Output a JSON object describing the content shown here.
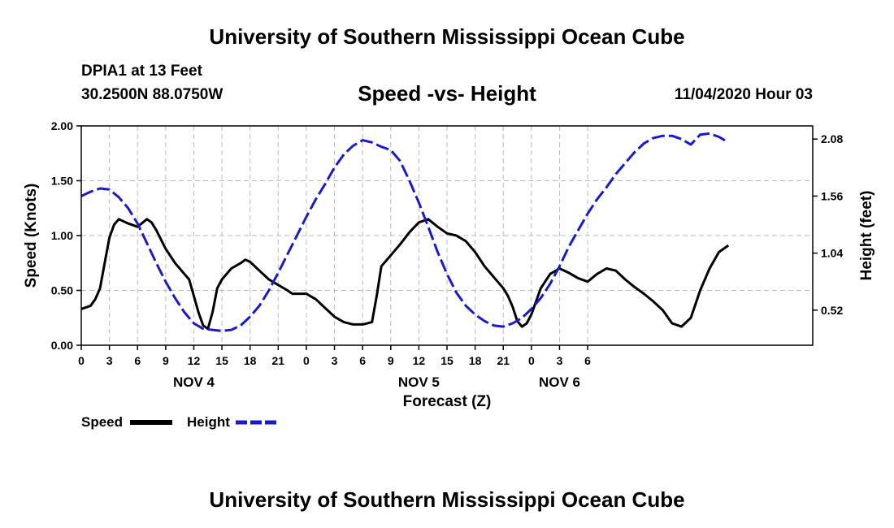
{
  "header": {
    "title": "University of Southern Mississippi Ocean Cube",
    "station": "DPIA1 at 13 Feet",
    "coordinates": "30.2500N 88.0750W",
    "datetime": "11/04/2020 Hour 03"
  },
  "footer": {
    "title": "University of Southern Mississippi Ocean Cube"
  },
  "colors": {
    "speed": "#000000",
    "height": "#1a1acc",
    "grid": "#bbbbbb"
  },
  "chart_data": {
    "type": "line",
    "title": "Speed -vs- Height",
    "xlabel": "Forecast (Z)",
    "ylabel": "Speed (Knots)",
    "y2label": "Height (feet)",
    "x_range": [
      0,
      78
    ],
    "ylim": [
      0,
      2
    ],
    "y2lim": [
      0.2,
      2.2
    ],
    "x_ticks": [
      {
        "x": 0,
        "label": "0"
      },
      {
        "x": 3,
        "label": "3"
      },
      {
        "x": 6,
        "label": "6"
      },
      {
        "x": 9,
        "label": "9"
      },
      {
        "x": 12,
        "label": "12"
      },
      {
        "x": 15,
        "label": "15"
      },
      {
        "x": 18,
        "label": "18"
      },
      {
        "x": 21,
        "label": "21"
      },
      {
        "x": 24,
        "label": "0"
      },
      {
        "x": 27,
        "label": "3"
      },
      {
        "x": 30,
        "label": "6"
      },
      {
        "x": 33,
        "label": "9"
      },
      {
        "x": 36,
        "label": "12"
      },
      {
        "x": 39,
        "label": "15"
      },
      {
        "x": 42,
        "label": "18"
      },
      {
        "x": 45,
        "label": "21"
      },
      {
        "x": 48,
        "label": "0"
      },
      {
        "x": 51,
        "label": "3"
      },
      {
        "x": 54,
        "label": "6"
      }
    ],
    "day_labels": [
      {
        "x": 12,
        "label": "NOV 4"
      },
      {
        "x": 36,
        "label": "NOV 5"
      },
      {
        "x": 51,
        "label": "NOV 6"
      }
    ],
    "y_ticks": [
      {
        "v": 0.0,
        "label": "0.00"
      },
      {
        "v": 0.5,
        "label": "0.50"
      },
      {
        "v": 1.0,
        "label": "1.00"
      },
      {
        "v": 1.5,
        "label": "1.50"
      },
      {
        "v": 2.0,
        "label": "2.00"
      }
    ],
    "y2_ticks": [
      {
        "v": 0.52,
        "label": "0.52"
      },
      {
        "v": 1.04,
        "label": "1.04"
      },
      {
        "v": 1.56,
        "label": "1.56"
      },
      {
        "v": 2.08,
        "label": "2.08"
      }
    ],
    "series": [
      {
        "name": "Speed",
        "axis": "left",
        "style": "solid",
        "points": [
          [
            0,
            0.33
          ],
          [
            1,
            0.36
          ],
          [
            1.5,
            0.42
          ],
          [
            2,
            0.52
          ],
          [
            2.5,
            0.75
          ],
          [
            3,
            0.98
          ],
          [
            3.5,
            1.1
          ],
          [
            4,
            1.15
          ],
          [
            5,
            1.11
          ],
          [
            6,
            1.08
          ],
          [
            7,
            1.15
          ],
          [
            7.5,
            1.12
          ],
          [
            8,
            1.05
          ],
          [
            9,
            0.88
          ],
          [
            10,
            0.75
          ],
          [
            11,
            0.65
          ],
          [
            11.5,
            0.6
          ],
          [
            12,
            0.45
          ],
          [
            12.5,
            0.3
          ],
          [
            13,
            0.18
          ],
          [
            13.5,
            0.15
          ],
          [
            14,
            0.3
          ],
          [
            14.5,
            0.52
          ],
          [
            15,
            0.6
          ],
          [
            16,
            0.7
          ],
          [
            17,
            0.75
          ],
          [
            17.5,
            0.78
          ],
          [
            18,
            0.76
          ],
          [
            19,
            0.68
          ],
          [
            20,
            0.6
          ],
          [
            21,
            0.55
          ],
          [
            22,
            0.5
          ],
          [
            22.5,
            0.47
          ],
          [
            23,
            0.47
          ],
          [
            24,
            0.47
          ],
          [
            25,
            0.42
          ],
          [
            26,
            0.34
          ],
          [
            27,
            0.26
          ],
          [
            28,
            0.21
          ],
          [
            29,
            0.19
          ],
          [
            30,
            0.19
          ],
          [
            31,
            0.21
          ],
          [
            31.5,
            0.45
          ],
          [
            32,
            0.72
          ],
          [
            33,
            0.82
          ],
          [
            34,
            0.92
          ],
          [
            35,
            1.03
          ],
          [
            36,
            1.12
          ],
          [
            37,
            1.15
          ],
          [
            38,
            1.08
          ],
          [
            39,
            1.02
          ],
          [
            40,
            1.0
          ],
          [
            41,
            0.95
          ],
          [
            42,
            0.85
          ],
          [
            43,
            0.72
          ],
          [
            44,
            0.62
          ],
          [
            45,
            0.52
          ],
          [
            45.5,
            0.45
          ],
          [
            46,
            0.35
          ],
          [
            46.5,
            0.22
          ],
          [
            47,
            0.17
          ],
          [
            47.5,
            0.2
          ],
          [
            48,
            0.28
          ],
          [
            49,
            0.52
          ],
          [
            50,
            0.65
          ],
          [
            51,
            0.7
          ],
          [
            52,
            0.66
          ],
          [
            53,
            0.61
          ],
          [
            54,
            0.58
          ],
          [
            55,
            0.65
          ],
          [
            56,
            0.7
          ],
          [
            57,
            0.68
          ],
          [
            58,
            0.6
          ],
          [
            59,
            0.53
          ],
          [
            60,
            0.47
          ],
          [
            61,
            0.4
          ],
          [
            62,
            0.32
          ],
          [
            63,
            0.2
          ],
          [
            64,
            0.17
          ],
          [
            65,
            0.25
          ],
          [
            66,
            0.5
          ],
          [
            67,
            0.7
          ],
          [
            68,
            0.85
          ],
          [
            69,
            0.91
          ]
        ]
      },
      {
        "name": "Height",
        "axis": "right",
        "style": "dashed",
        "points": [
          [
            0,
            1.56
          ],
          [
            1,
            1.6
          ],
          [
            2,
            1.63
          ],
          [
            3,
            1.62
          ],
          [
            4,
            1.55
          ],
          [
            5,
            1.45
          ],
          [
            6,
            1.31
          ],
          [
            7,
            1.13
          ],
          [
            8,
            0.95
          ],
          [
            9,
            0.78
          ],
          [
            10,
            0.63
          ],
          [
            11,
            0.5
          ],
          [
            12,
            0.4
          ],
          [
            13,
            0.35
          ],
          [
            14,
            0.34
          ],
          [
            15,
            0.33
          ],
          [
            16,
            0.34
          ],
          [
            17,
            0.38
          ],
          [
            18,
            0.46
          ],
          [
            19,
            0.56
          ],
          [
            20,
            0.7
          ],
          [
            21,
            0.86
          ],
          [
            22,
            1.03
          ],
          [
            23,
            1.2
          ],
          [
            24,
            1.37
          ],
          [
            25,
            1.53
          ],
          [
            26,
            1.67
          ],
          [
            27,
            1.82
          ],
          [
            28,
            1.94
          ],
          [
            29,
            2.02
          ],
          [
            30,
            2.07
          ],
          [
            31,
            2.05
          ],
          [
            32,
            2.01
          ],
          [
            33,
            1.98
          ],
          [
            34,
            1.88
          ],
          [
            35,
            1.7
          ],
          [
            36,
            1.5
          ],
          [
            37,
            1.28
          ],
          [
            38,
            1.05
          ],
          [
            39,
            0.85
          ],
          [
            40,
            0.68
          ],
          [
            41,
            0.56
          ],
          [
            42,
            0.48
          ],
          [
            43,
            0.42
          ],
          [
            44,
            0.38
          ],
          [
            45,
            0.37
          ],
          [
            46,
            0.4
          ],
          [
            47,
            0.45
          ],
          [
            48,
            0.53
          ],
          [
            49,
            0.63
          ],
          [
            50,
            0.76
          ],
          [
            51,
            0.92
          ],
          [
            52,
            1.1
          ],
          [
            53,
            1.25
          ],
          [
            54,
            1.4
          ],
          [
            55,
            1.53
          ],
          [
            56,
            1.64
          ],
          [
            57,
            1.76
          ],
          [
            58,
            1.86
          ],
          [
            59,
            1.96
          ],
          [
            60,
            2.04
          ],
          [
            61,
            2.09
          ],
          [
            62,
            2.11
          ],
          [
            63,
            2.11
          ],
          [
            64,
            2.08
          ],
          [
            65,
            2.03
          ],
          [
            66,
            2.12
          ],
          [
            67,
            2.13
          ],
          [
            68,
            2.1
          ],
          [
            69,
            2.05
          ]
        ]
      }
    ],
    "legend": [
      {
        "label": "Speed",
        "style": "solid"
      },
      {
        "label": "Height",
        "style": "dashed"
      }
    ]
  }
}
